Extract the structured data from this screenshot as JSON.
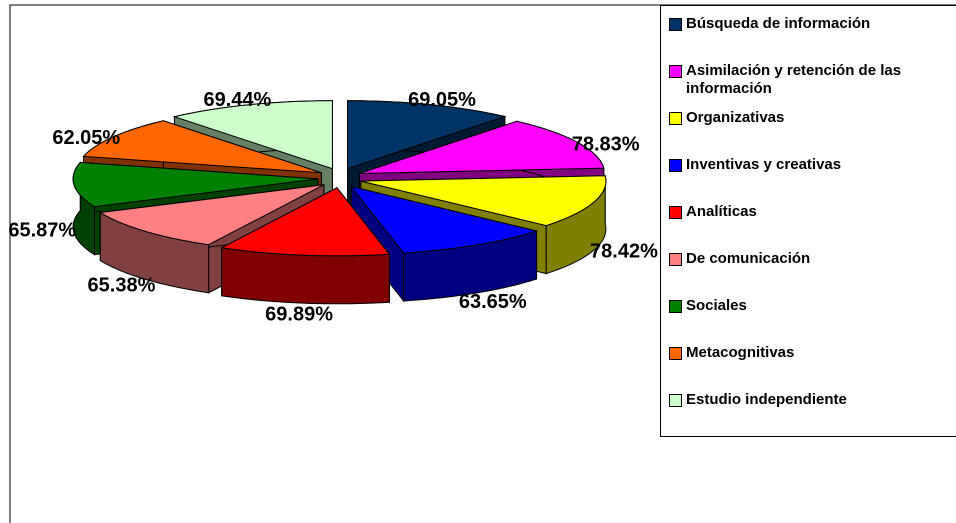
{
  "chart_data": {
    "type": "pie",
    "categories": [
      "Búsqueda de información",
      "Asimilación y retención de las información",
      "Organizativas",
      "Inventivas y creativas",
      "Analíticas",
      "De comunicación",
      "Sociales",
      "Metacognitivas",
      "Estudio independiente"
    ],
    "values": [
      69.05,
      78.83,
      78.42,
      63.65,
      69.89,
      65.38,
      65.87,
      62.05,
      69.44
    ],
    "value_labels": [
      "69.05%",
      "78.83%",
      "78.42%",
      "63.65%",
      "69.89%",
      "65.38%",
      "65.87%",
      "62.05%",
      "69.44%"
    ],
    "colors": [
      "#003366",
      "#FF00FF",
      "#FFFF00",
      "#0000FF",
      "#FF0000",
      "#FF8080",
      "#008000",
      "#FF6600",
      "#CCFFCC"
    ],
    "legend": "right"
  }
}
